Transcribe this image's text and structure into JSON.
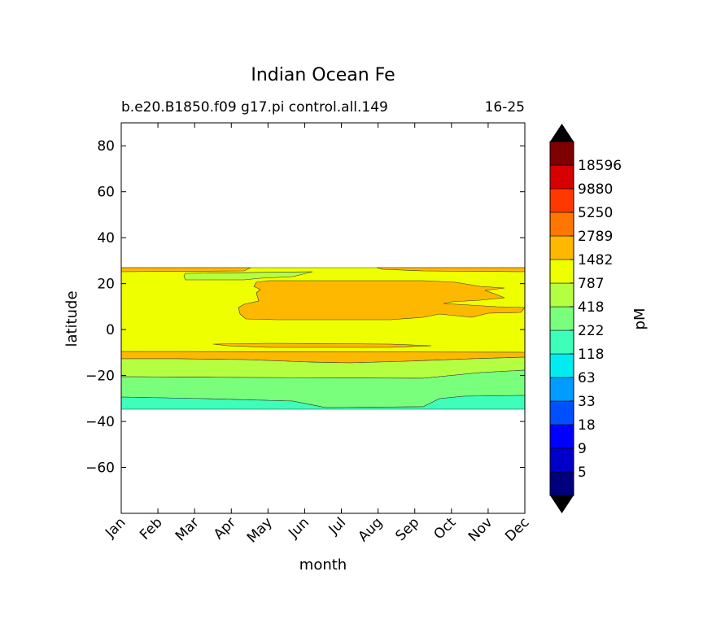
{
  "chart_data": {
    "type": "heatmap",
    "title": "Indian Ocean Fe",
    "subtitle_left": "b.e20.B1850.f09 g17.pi control.all.149",
    "subtitle_right": "16-25",
    "xlabel": "month",
    "ylabel": "latitude",
    "x_ticks": [
      "Jan",
      "Feb",
      "Mar",
      "Apr",
      "May",
      "Jun",
      "Jul",
      "Aug",
      "Sep",
      "Oct",
      "Nov",
      "Dec"
    ],
    "y_ticks": [
      80,
      60,
      40,
      20,
      0,
      -20,
      -40,
      -60
    ],
    "ylim": [
      -80,
      90
    ],
    "colorbar": {
      "label": "pM",
      "tick_labels": [
        "5",
        "9",
        "18",
        "33",
        "63",
        "118",
        "222",
        "418",
        "787",
        "1482",
        "2789",
        "5250",
        "9880",
        "18596"
      ],
      "colors": [
        "#00007f",
        "#0000c8",
        "#0000ff",
        "#0050ff",
        "#009cff",
        "#00ecf0",
        "#3dffb9",
        "#7aff7c",
        "#b4ff42",
        "#eeff00",
        "#ffb800",
        "#ff7700",
        "#ff3800",
        "#d70000",
        "#7f0000"
      ],
      "extend_colors": {
        "low": "#000000",
        "high": "#000000"
      }
    },
    "regions": [
      {
        "level_color": "#eeff00",
        "lat_range": [
          -9,
          27
        ],
        "description": "787-1482 band"
      },
      {
        "level_color": "#ffb800",
        "lat_range": [
          9,
          22
        ],
        "month_range": [
          "May",
          "Oct"
        ]
      },
      {
        "level_color": "#ffb800",
        "lat_range": [
          -14,
          -9
        ]
      },
      {
        "level_color": "#b4ff42",
        "lat_range": [
          -20,
          -14
        ]
      },
      {
        "level_color": "#7aff7c",
        "lat_range": [
          -29,
          -20
        ]
      },
      {
        "level_color": "#3dffb9",
        "lat_range": [
          -34,
          -29
        ]
      }
    ]
  }
}
